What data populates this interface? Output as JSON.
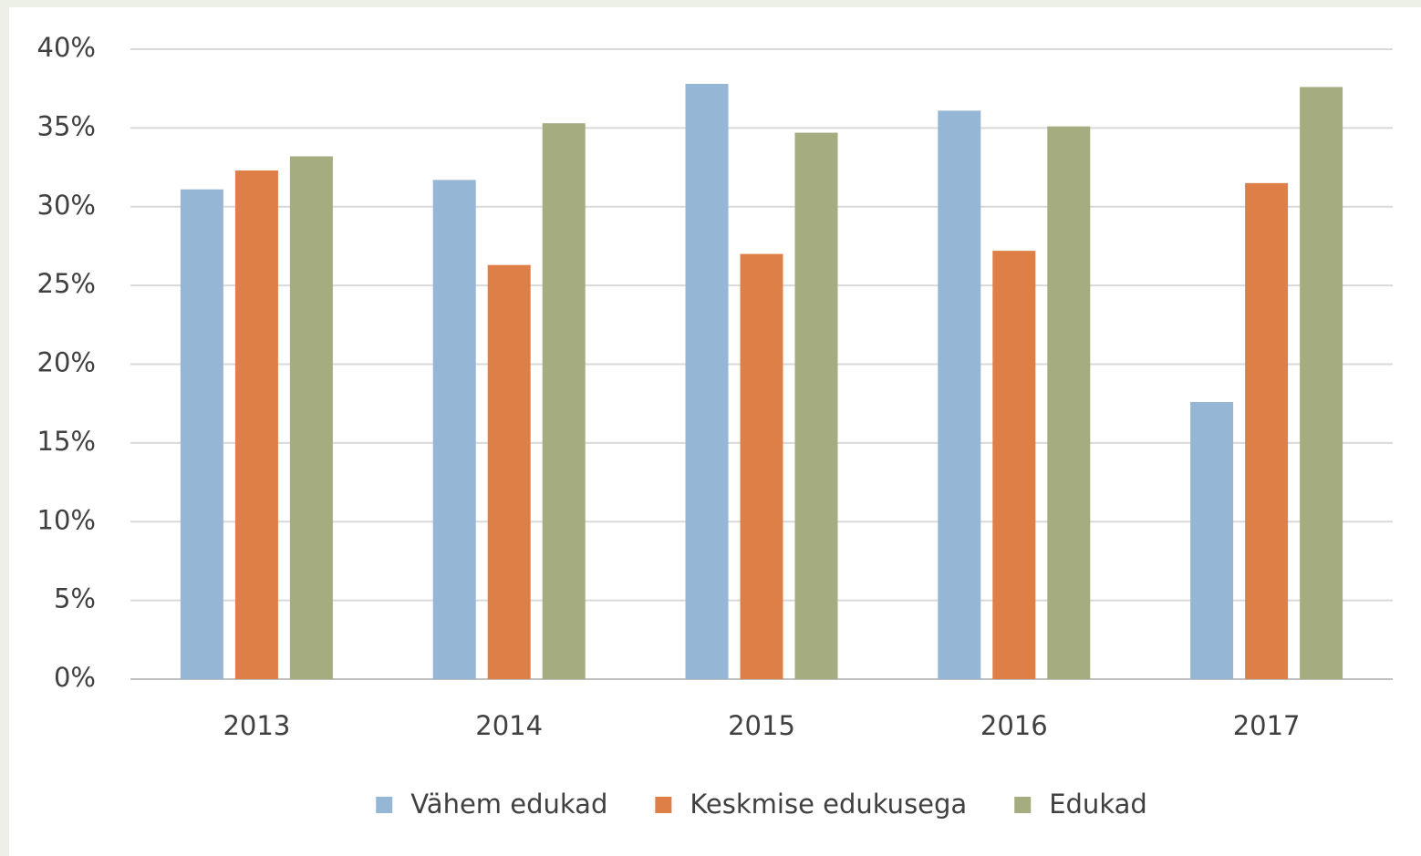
{
  "chart_data": {
    "type": "bar",
    "categories": [
      "2013",
      "2014",
      "2015",
      "2016",
      "2017"
    ],
    "series": [
      {
        "name": "Vähem edukad",
        "color": "#95b6d5",
        "values": [
          31.1,
          31.7,
          37.8,
          36.1,
          17.6
        ]
      },
      {
        "name": "Keskmise edukusega",
        "color": "#dd7f47",
        "values": [
          32.3,
          26.3,
          27.0,
          27.2,
          31.5
        ]
      },
      {
        "name": "Edukad",
        "color": "#a5ac80",
        "values": [
          33.2,
          35.3,
          34.7,
          35.1,
          37.6
        ]
      }
    ],
    "ylim": [
      0,
      40
    ],
    "yticks": [
      {
        "value": 0,
        "label": "0%"
      },
      {
        "value": 5,
        "label": "5%"
      },
      {
        "value": 10,
        "label": "10%"
      },
      {
        "value": 15,
        "label": "15%"
      },
      {
        "value": 20,
        "label": "20%"
      },
      {
        "value": 25,
        "label": "25%"
      },
      {
        "value": 30,
        "label": "30%"
      },
      {
        "value": 35,
        "label": "35%"
      },
      {
        "value": 40,
        "label": "40%"
      }
    ],
    "grid": true,
    "legend": "bottom"
  }
}
